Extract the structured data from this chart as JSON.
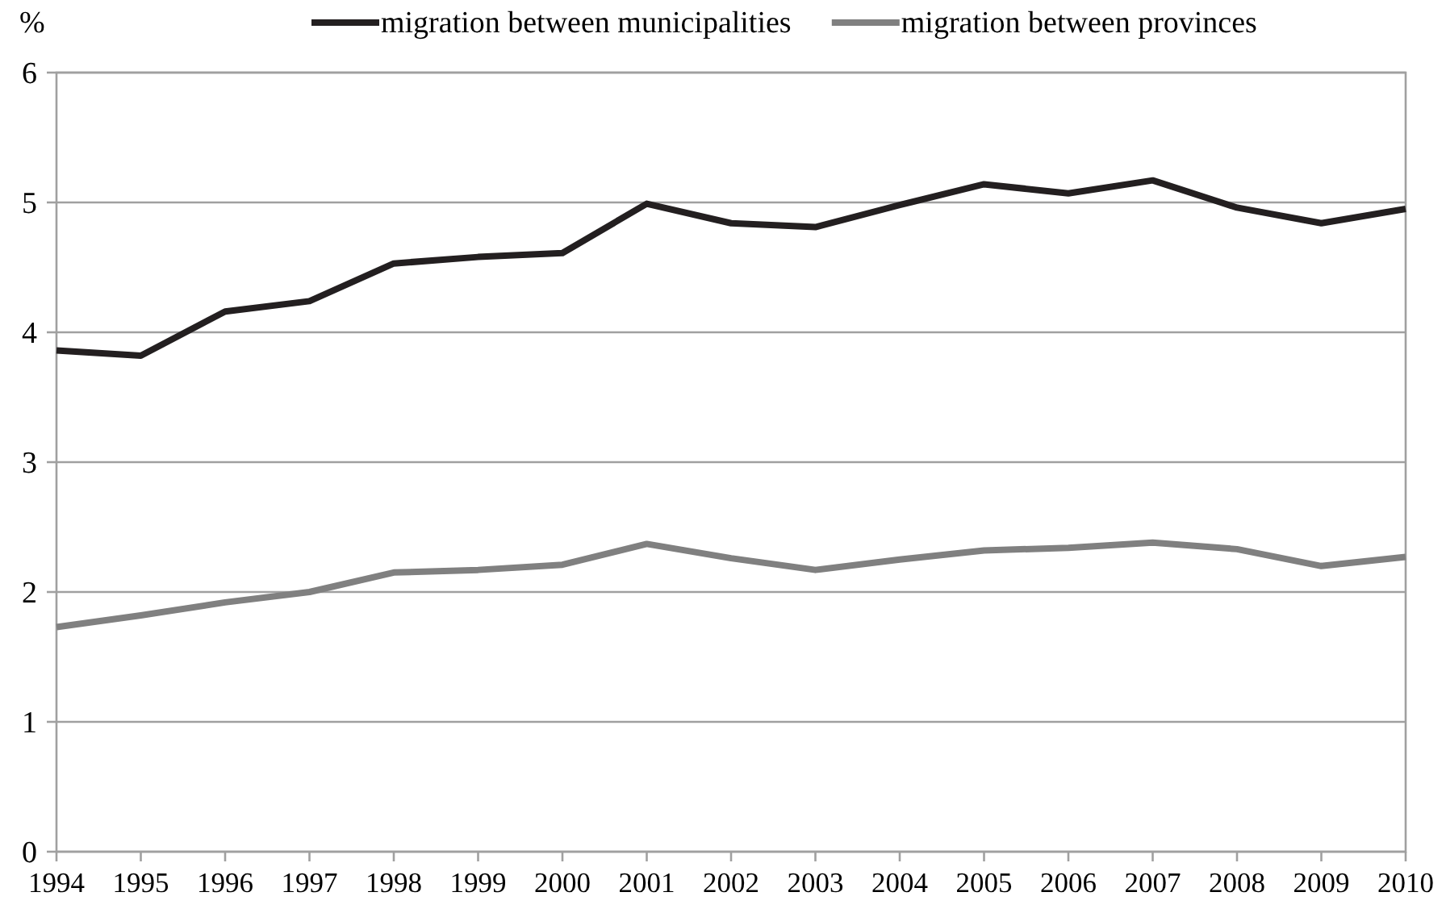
{
  "chart_data": {
    "type": "line",
    "ylabel": "%",
    "categories": [
      "1994",
      "1995",
      "1996",
      "1997",
      "1998",
      "1999",
      "2000",
      "2001",
      "2002",
      "2003",
      "2004",
      "2005",
      "2006",
      "2007",
      "2008",
      "2009",
      "2010"
    ],
    "series": [
      {
        "name": "migration between municipalities",
        "color": "#231f20",
        "values": [
          3.86,
          3.82,
          4.16,
          4.24,
          4.53,
          4.58,
          4.61,
          4.99,
          4.84,
          4.81,
          4.98,
          5.14,
          5.07,
          5.17,
          4.96,
          4.84,
          4.95
        ]
      },
      {
        "name": "migration between provinces",
        "color": "#808080",
        "values": [
          1.73,
          1.82,
          1.92,
          2.0,
          2.15,
          2.17,
          2.21,
          2.37,
          2.26,
          2.17,
          2.25,
          2.32,
          2.34,
          2.38,
          2.33,
          2.2,
          2.27
        ]
      }
    ],
    "ylim": [
      0,
      6
    ],
    "yticks": [
      0,
      1,
      2,
      3,
      4,
      5,
      6
    ],
    "grid": "y",
    "legend": "top",
    "marker": "none",
    "line_style": "solid"
  }
}
